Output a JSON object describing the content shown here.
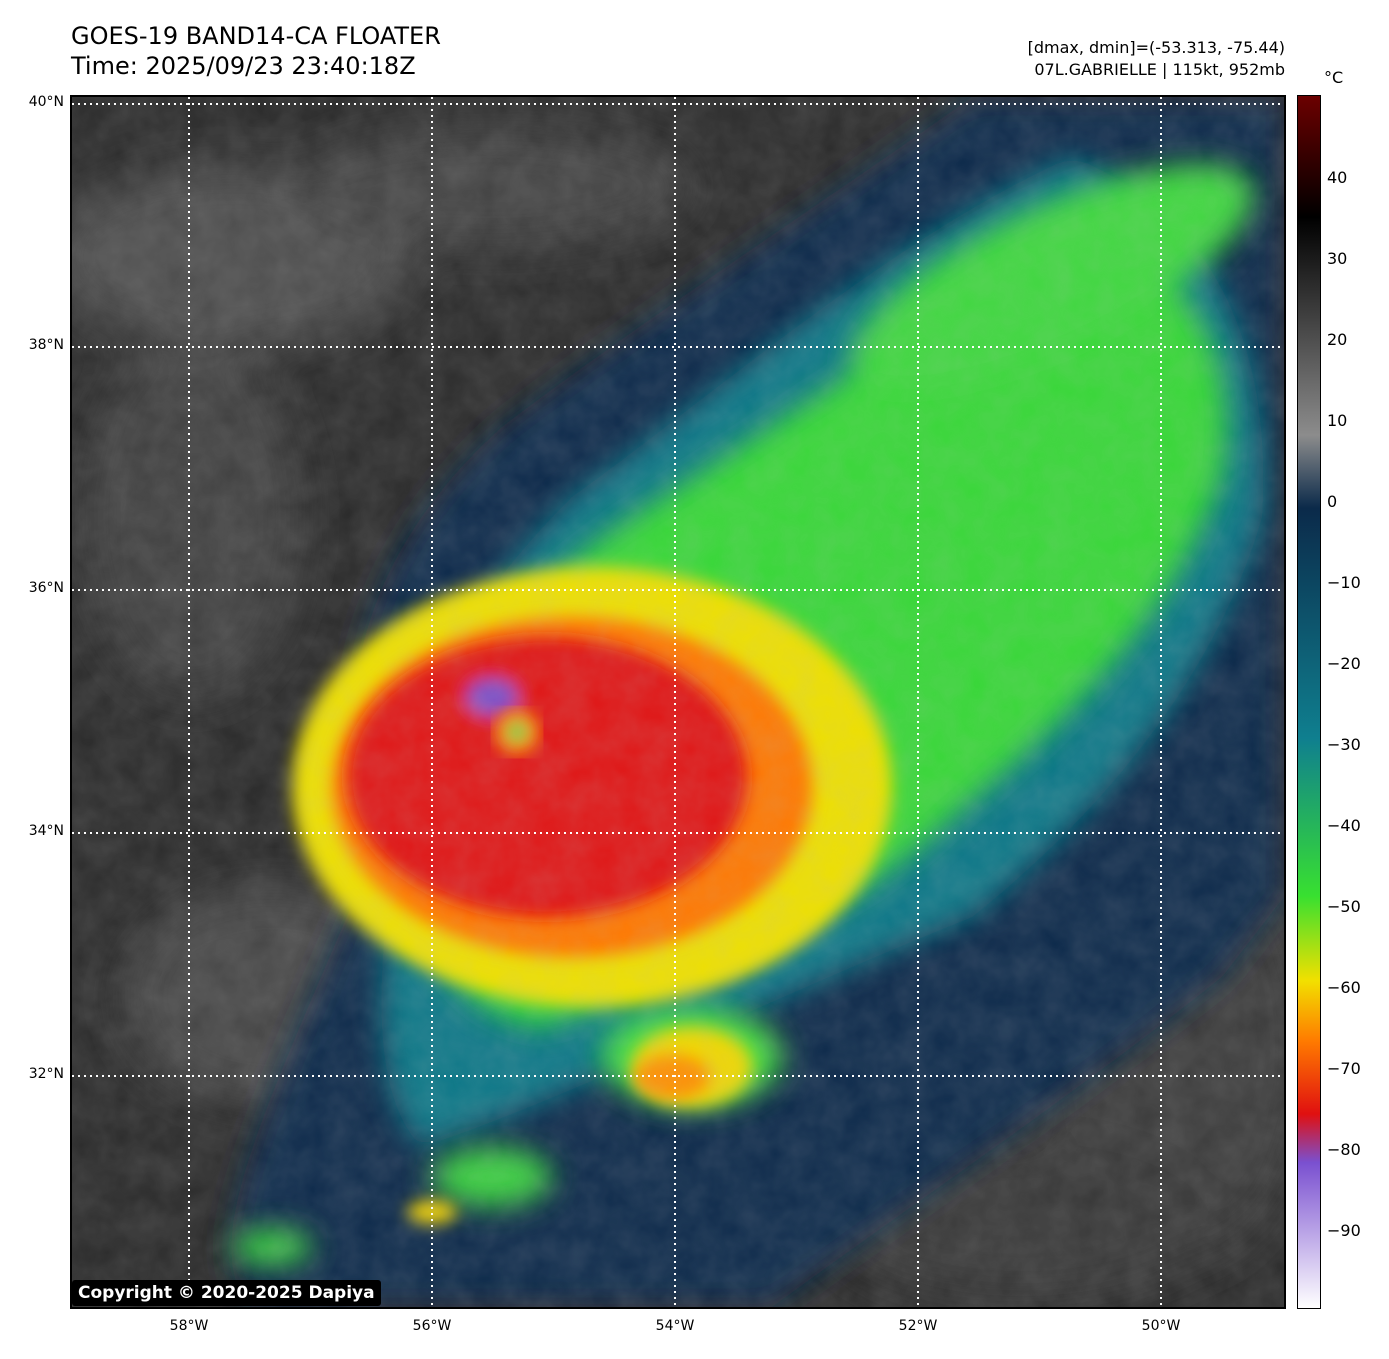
{
  "header": {
    "title_line1": "GOES-19 BAND14-CA FLOATER",
    "title_line2": "Time: 2025/09/23 23:40:18Z",
    "dmax_dmin": "[dmax, dmin]=(-53.313, -75.44)",
    "storm_info": "07L.GABRIELLE | 115kt, 952mb"
  },
  "map": {
    "lat_labels": [
      "40°N",
      "38°N",
      "36°N",
      "34°N",
      "32°N"
    ],
    "lon_labels": [
      "58°W",
      "56°W",
      "54°W",
      "52°W",
      "50°W"
    ],
    "copyright": "Copyright © 2020-2025 Dapiya"
  },
  "colorbar": {
    "unit": "°C",
    "ticks": [
      "40",
      "30",
      "20",
      "10",
      "0",
      "−10",
      "−20",
      "−30",
      "−40",
      "−50",
      "−60",
      "−70",
      "−80",
      "−90"
    ],
    "colors": {
      "warm_max": "#6b0000",
      "black": "#000000",
      "gray": "#8c8c8c",
      "dark_blue": "#0b2a4a",
      "teal": "#0f7f8f",
      "green": "#38e030",
      "yellow": "#f2e000",
      "orange": "#ff7a00",
      "red": "#e01010",
      "purple": "#7a50d0",
      "white": "#ffffff"
    }
  }
}
